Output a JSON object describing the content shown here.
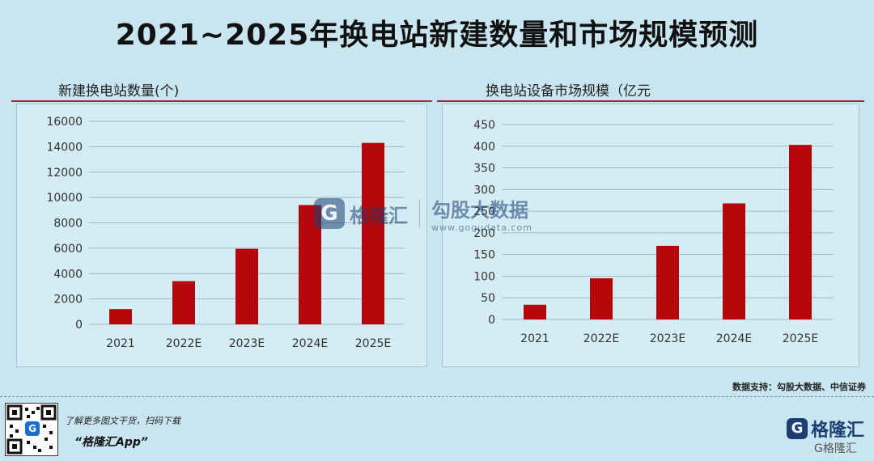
{
  "title": "2021~2025年换电站新建数量和市场规模预测",
  "chart_data": [
    {
      "type": "bar",
      "title": "新建换电站数量(个)",
      "categories": [
        "2021",
        "2022E",
        "2023E",
        "2024E",
        "2025E"
      ],
      "values": [
        1200,
        3400,
        5950,
        9400,
        14300
      ],
      "ylim": [
        0,
        16000
      ],
      "yticks": [
        "0",
        "2000",
        "4000",
        "6000",
        "8000",
        "10000",
        "12000",
        "14000",
        "16000"
      ],
      "xlabel": "",
      "ylabel": "",
      "grid": true,
      "bar_color": "#b5060a"
    },
    {
      "type": "bar",
      "title": "换电站设备市场规模（亿元",
      "categories": [
        "2021",
        "2022E",
        "2023E",
        "2024E",
        "2025E"
      ],
      "values": [
        34,
        95,
        170,
        268,
        403
      ],
      "ylim": [
        0,
        450
      ],
      "yticks": [
        "0",
        "50",
        "100",
        "150",
        "200",
        "250",
        "300",
        "350",
        "400",
        "450"
      ],
      "xlabel": "",
      "ylabel": "",
      "grid": true,
      "bar_color": "#b5060a"
    }
  ],
  "watermark": {
    "logo": "G",
    "brand": "格隆汇",
    "site": "勾股大数据",
    "url": "www.gogudata.com"
  },
  "source": "数据支持：勾股大数据、中信证券",
  "footer": {
    "promo": "了解更多图文干货，扫码下载",
    "app": "“格隆汇App”",
    "brand_logo": "G",
    "brand": "格隆汇",
    "tagline": "G格隆汇",
    "qr_icon": "qr-code-icon"
  },
  "colors": {
    "background": "#c9e6f0",
    "divider": "#8b3a44",
    "bar": "#b5060a"
  }
}
